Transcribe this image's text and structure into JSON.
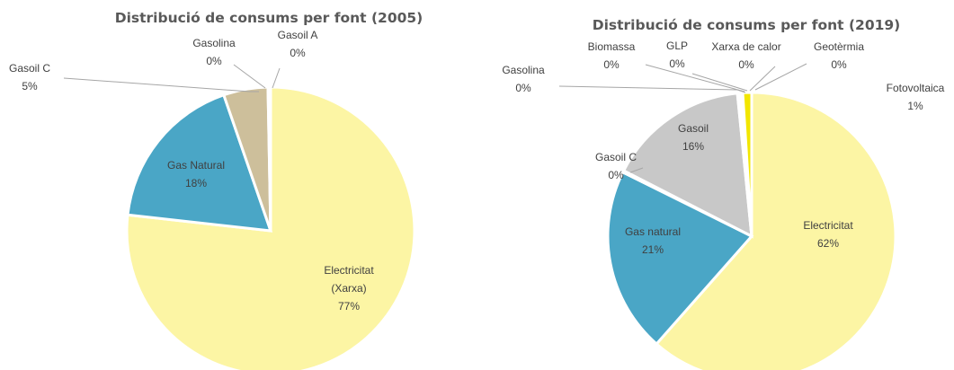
{
  "chart_data": [
    {
      "type": "pie",
      "title": "Distribució de consums per font (2005)",
      "slices": [
        {
          "label": [
            "Electricitat",
            "(Xarxa)"
          ],
          "value_label": "77%",
          "value": 77,
          "color": "#fcf5a4"
        },
        {
          "label": [
            "Gas Natural"
          ],
          "value_label": "18%",
          "value": 18,
          "color": "#4aa6c6"
        },
        {
          "label": [
            "Gasoil C"
          ],
          "value_label": "5%",
          "value": 5,
          "color": "#cdbf9b"
        },
        {
          "label": [
            "Gasolina"
          ],
          "value_label": "0%",
          "value": 0.15,
          "color": "#a6a6a6"
        },
        {
          "label": [
            "Gasoil A"
          ],
          "value_label": "0%",
          "value": 0.15,
          "color": "#7f7f7f"
        }
      ]
    },
    {
      "type": "pie",
      "title": "Distribució de consums per font (2019)",
      "slices": [
        {
          "label": [
            "Electricitat"
          ],
          "value_label": "62%",
          "value": 62,
          "color": "#fcf5a4"
        },
        {
          "label": [
            "Gas natural"
          ],
          "value_label": "21%",
          "value": 21,
          "color": "#4aa6c6"
        },
        {
          "label": [
            "Gasoil C"
          ],
          "value_label": "0%",
          "value": 0.2,
          "color": "#cdbf9b"
        },
        {
          "label": [
            "Gasoil"
          ],
          "value_label": "16%",
          "value": 16,
          "color": "#c8c8c8"
        },
        {
          "label": [
            "Gasolina"
          ],
          "value_label": "0%",
          "value": 0.12,
          "color": "#8c8c8c"
        },
        {
          "label": [
            "Biomassa"
          ],
          "value_label": "0%",
          "value": 0.12,
          "color": "#7a9c4e"
        },
        {
          "label": [
            "GLP"
          ],
          "value_label": "0%",
          "value": 0.12,
          "color": "#e28b3a"
        },
        {
          "label": [
            "Xarxa de calor"
          ],
          "value_label": "0%",
          "value": 0.12,
          "color": "#b05050"
        },
        {
          "label": [
            "Geotèrmia"
          ],
          "value_label": "0%",
          "value": 0.12,
          "color": "#6d5aa0"
        },
        {
          "label": [
            "Fotovoltaica"
          ],
          "value_label": "1%",
          "value": 1,
          "color": "#f2e600"
        }
      ]
    }
  ]
}
